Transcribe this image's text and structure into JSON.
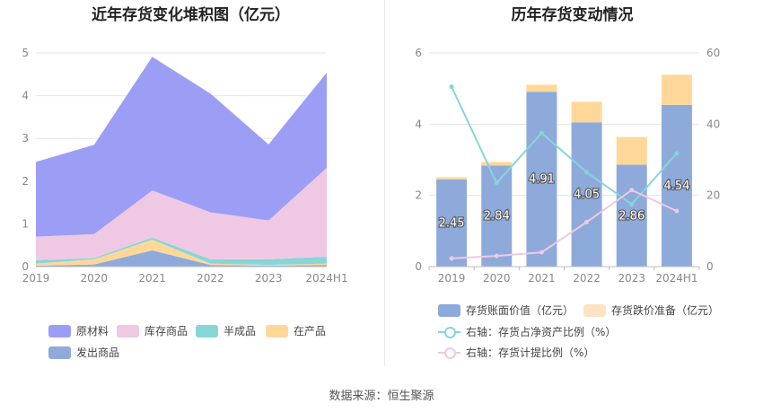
{
  "left_title": "近年存货变化堆积图（亿元）",
  "right_title": "历年存货变动情况",
  "source": "数据来源：恒生聚源",
  "chart_data": [
    {
      "type": "area",
      "stacked": true,
      "title": "近年存货变化堆积图（亿元）",
      "x": [
        "2019",
        "2020",
        "2021",
        "2022",
        "2023",
        "2024H1"
      ],
      "ylim": [
        0,
        5
      ],
      "yticks": [
        "0",
        "1",
        "2",
        "3",
        "4",
        "5"
      ],
      "grid": true,
      "legend_position": "bottom",
      "series": [
        {
          "name": "发出商品",
          "color": "#8eaadb",
          "values": [
            0.02,
            0.05,
            0.38,
            0.04,
            0.02,
            0.04
          ]
        },
        {
          "name": "在产品",
          "color": "#ffd899",
          "values": [
            0.05,
            0.12,
            0.25,
            0.03,
            0.02,
            0.03
          ]
        },
        {
          "name": "半成品",
          "color": "#86d6d8",
          "values": [
            0.08,
            0.03,
            0.05,
            0.1,
            0.13,
            0.16
          ]
        },
        {
          "name": "库存商品",
          "color": "#efc9e4",
          "values": [
            0.55,
            0.56,
            1.1,
            1.1,
            0.91,
            2.08
          ]
        },
        {
          "name": "原材料",
          "color": "#9c9ef5",
          "values": [
            1.75,
            2.09,
            3.13,
            2.78,
            1.78,
            2.23
          ]
        }
      ],
      "legend_order": [
        "原材料",
        "库存商品",
        "半成品",
        "在产品",
        "发出商品"
      ]
    },
    {
      "type": "bar",
      "stacked": true,
      "title": "历年存货变动情况",
      "categories": [
        "2019",
        "2020",
        "2021",
        "2022",
        "2023",
        "2024H1"
      ],
      "ylim": [
        0,
        6
      ],
      "yticks": [
        "0",
        "2",
        "4",
        "6"
      ],
      "y2lim": [
        0,
        60
      ],
      "y2ticks": [
        "0",
        "20",
        "40",
        "60"
      ],
      "grid": true,
      "legend_position": "bottom",
      "series": [
        {
          "name": "存货账面价值（亿元）",
          "kind": "bar",
          "color": "#8eaadb",
          "values": [
            2.45,
            2.84,
            4.91,
            4.05,
            2.86,
            4.54
          ],
          "labels": [
            "2.45",
            "2.84",
            "4.91",
            "4.05",
            "2.86",
            "4.54"
          ]
        },
        {
          "name": "存货跌价准备（亿元）",
          "kind": "bar",
          "color": "#ffd899",
          "values": [
            0.06,
            0.1,
            0.2,
            0.58,
            0.78,
            0.85
          ]
        },
        {
          "name": "右轴：存货占净资产比例（%）",
          "kind": "line",
          "axis": "right",
          "color": "#86d6d8",
          "values": [
            50.5,
            23.5,
            37.5,
            26.5,
            17.5,
            31.8
          ]
        },
        {
          "name": "右轴：存货计提比例（%）",
          "kind": "line",
          "axis": "right",
          "color": "#efc9e4",
          "values": [
            2.3,
            3.0,
            4.0,
            12.5,
            21.5,
            15.6
          ]
        }
      ]
    }
  ]
}
